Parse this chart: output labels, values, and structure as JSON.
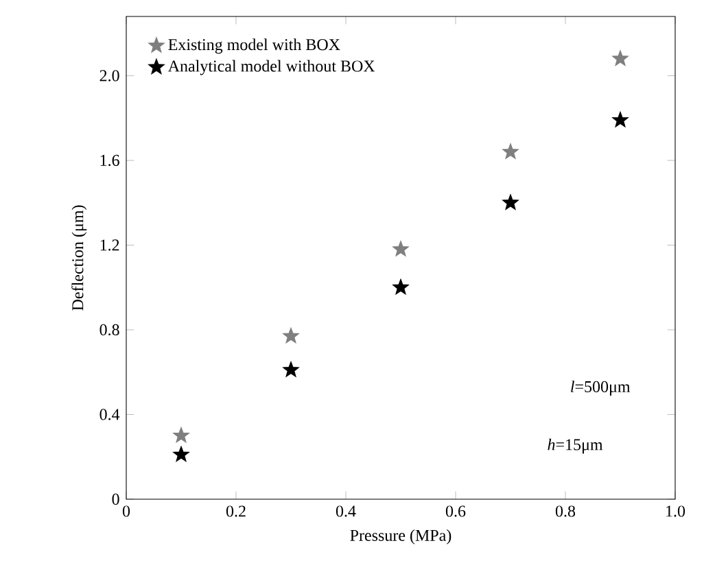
{
  "chart_data": {
    "type": "scatter",
    "xlabel": "Pressure (MPa)",
    "ylabel": "Deflection (μm)",
    "x": [
      0.1,
      0.3,
      0.5,
      0.7,
      0.9
    ],
    "series": [
      {
        "name": "Existing model with BOX",
        "color": "#7f7f7f",
        "values": [
          0.3,
          0.77,
          1.18,
          1.64,
          2.08
        ]
      },
      {
        "name": "Analytical model without BOX",
        "color": "#000000",
        "values": [
          0.21,
          0.61,
          1.0,
          1.4,
          1.79
        ]
      }
    ],
    "xlim": [
      0,
      1
    ],
    "ylim": [
      0,
      2.28
    ],
    "xticks": [
      0,
      0.2,
      0.4,
      0.6,
      0.8,
      {
        "value": 1,
        "label": "1.0"
      }
    ],
    "yticks": [
      0,
      0.4,
      0.8,
      1.2,
      1.6,
      {
        "value": 2,
        "label": "2.0"
      }
    ],
    "annotations": [
      "*l*=500μm",
      "*h*=15μm"
    ],
    "marker": "star",
    "legend": "top left",
    "grid": false
  }
}
